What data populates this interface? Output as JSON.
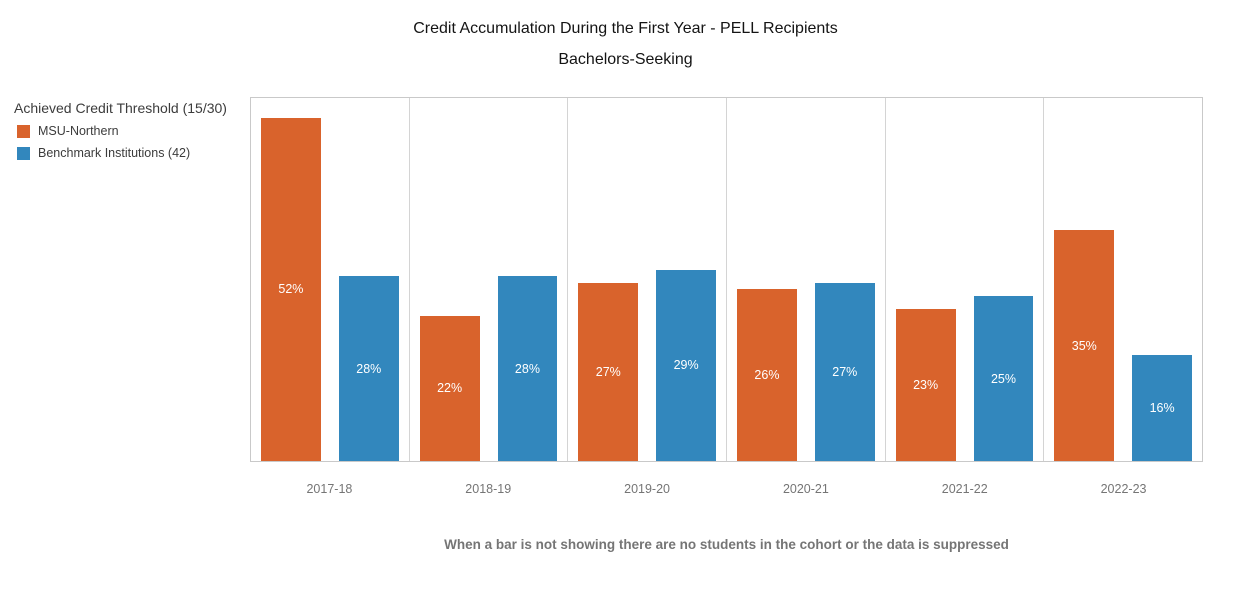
{
  "title": "Credit Accumulation During the First Year - PELL Recipients",
  "subtitle": "Bachelors-Seeking",
  "legend": {
    "heading": "Achieved Credit Threshold (15/30)",
    "items": [
      {
        "label": "MSU-Northern",
        "color": "#d9632c"
      },
      {
        "label": "Benchmark Institutions (42)",
        "color": "#3287bd"
      }
    ]
  },
  "footnote": "When a bar is not showing there are no students in the cohort or the data is suppressed",
  "chart_data": {
    "type": "bar",
    "title": "Credit Accumulation During the First Year - PELL Recipients",
    "subtitle": "Bachelors-Seeking",
    "categories": [
      "2017-18",
      "2018-19",
      "2019-20",
      "2020-21",
      "2021-22",
      "2022-23"
    ],
    "series": [
      {
        "name": "MSU-Northern",
        "color": "#d9632c",
        "values": [
          52,
          22,
          27,
          26,
          23,
          35
        ]
      },
      {
        "name": "Benchmark Institutions (42)",
        "color": "#3287bd",
        "values": [
          28,
          28,
          29,
          27,
          25,
          16
        ]
      }
    ],
    "value_suffix": "%",
    "ylim": [
      0,
      55
    ],
    "xlabel": "",
    "ylabel": "",
    "grid": "vertical panel dividers only, no y-axis ticks or labels",
    "legend_position": "left",
    "data_labels": "white, centered inside bars"
  }
}
